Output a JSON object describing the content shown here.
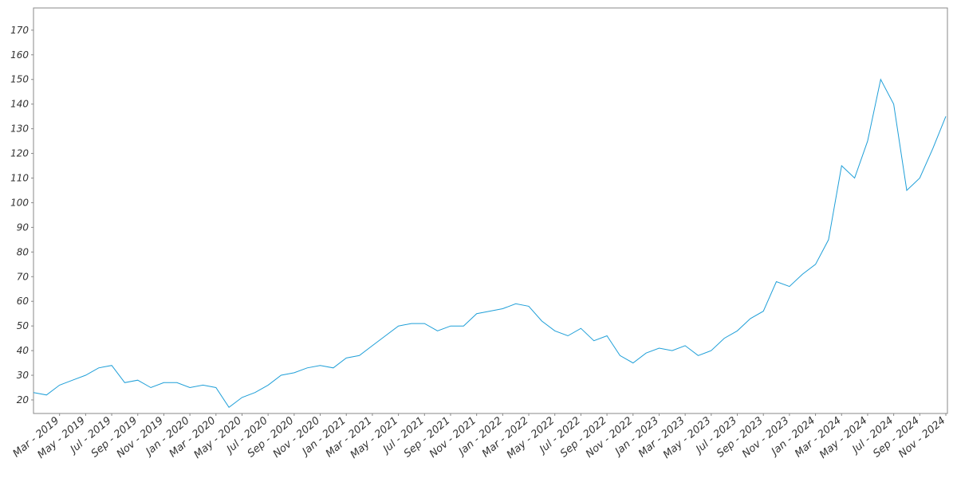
{
  "chart_data": {
    "type": "line",
    "x": [
      "2019-01",
      "2019-02",
      "2019-03",
      "2019-04",
      "2019-05",
      "2019-06",
      "2019-07",
      "2019-08",
      "2019-09",
      "2019-10",
      "2019-11",
      "2019-12",
      "2020-01",
      "2020-02",
      "2020-03",
      "2020-04",
      "2020-05",
      "2020-06",
      "2020-07",
      "2020-08",
      "2020-09",
      "2020-10",
      "2020-11",
      "2020-12",
      "2021-01",
      "2021-02",
      "2021-03",
      "2021-04",
      "2021-05",
      "2021-06",
      "2021-07",
      "2021-08",
      "2021-09",
      "2021-10",
      "2021-11",
      "2021-12",
      "2022-01",
      "2022-02",
      "2022-03",
      "2022-04",
      "2022-05",
      "2022-06",
      "2022-07",
      "2022-08",
      "2022-09",
      "2022-10",
      "2022-11",
      "2022-12",
      "2023-01",
      "2023-02",
      "2023-03",
      "2023-04",
      "2023-05",
      "2023-06",
      "2023-07",
      "2023-08",
      "2023-09",
      "2023-10",
      "2023-11",
      "2023-12",
      "2024-01",
      "2024-02",
      "2024-03",
      "2024-04",
      "2024-05",
      "2024-06",
      "2024-07",
      "2024-08",
      "2024-09",
      "2024-10",
      "2024-11"
    ],
    "values": [
      23,
      22,
      26,
      28,
      30,
      33,
      34,
      27,
      28,
      25,
      27,
      27,
      25,
      26,
      25,
      17,
      21,
      23,
      26,
      30,
      31,
      33,
      34,
      33,
      37,
      38,
      42,
      46,
      50,
      51,
      51,
      48,
      50,
      50,
      55,
      56,
      57,
      59,
      58,
      52,
      48,
      46,
      49,
      44,
      46,
      38,
      35,
      39,
      41,
      40,
      42,
      38,
      40,
      45,
      48,
      53,
      56,
      68,
      66,
      71,
      75,
      85,
      115,
      110,
      125,
      150,
      140,
      105,
      110,
      122,
      135
    ],
    "color": "#1f9fd8",
    "xlim": [
      "2019-01",
      "2024-11"
    ],
    "xticks": [
      {
        "value": "2019-03",
        "label": "Mar - 2019"
      },
      {
        "value": "2019-05",
        "label": "May - 2019"
      },
      {
        "value": "2019-07",
        "label": "Jul - 2019"
      },
      {
        "value": "2019-09",
        "label": "Sep - 2019"
      },
      {
        "value": "2019-11",
        "label": "Nov - 2019"
      },
      {
        "value": "2020-01",
        "label": "Jan - 2020"
      },
      {
        "value": "2020-03",
        "label": "Mar - 2020"
      },
      {
        "value": "2020-05",
        "label": "May - 2020"
      },
      {
        "value": "2020-07",
        "label": "Jul - 2020"
      },
      {
        "value": "2020-09",
        "label": "Sep - 2020"
      },
      {
        "value": "2020-11",
        "label": "Nov - 2020"
      },
      {
        "value": "2021-01",
        "label": "Jan - 2021"
      },
      {
        "value": "2021-03",
        "label": "Mar - 2021"
      },
      {
        "value": "2021-05",
        "label": "May - 2021"
      },
      {
        "value": "2021-07",
        "label": "Jul - 2021"
      },
      {
        "value": "2021-09",
        "label": "Sep - 2021"
      },
      {
        "value": "2021-11",
        "label": "Nov - 2021"
      },
      {
        "value": "2022-01",
        "label": "Jan - 2022"
      },
      {
        "value": "2022-03",
        "label": "Mar - 2022"
      },
      {
        "value": "2022-05",
        "label": "May - 2022"
      },
      {
        "value": "2022-07",
        "label": "Jul - 2022"
      },
      {
        "value": "2022-09",
        "label": "Sep - 2022"
      },
      {
        "value": "2022-11",
        "label": "Nov - 2022"
      },
      {
        "value": "2023-01",
        "label": "Jan - 2023"
      },
      {
        "value": "2023-03",
        "label": "Mar - 2023"
      },
      {
        "value": "2023-05",
        "label": "May - 2023"
      },
      {
        "value": "2023-07",
        "label": "Jul - 2023"
      },
      {
        "value": "2023-09",
        "label": "Sep - 2023"
      },
      {
        "value": "2023-11",
        "label": "Nov - 2023"
      },
      {
        "value": "2024-01",
        "label": "Jan - 2024"
      },
      {
        "value": "2024-03",
        "label": "Mar - 2024"
      },
      {
        "value": "2024-05",
        "label": "May - 2024"
      },
      {
        "value": "2024-07",
        "label": "Jul - 2024"
      },
      {
        "value": "2024-09",
        "label": "Sep - 2024"
      },
      {
        "value": "2024-11",
        "label": "Nov - 2024"
      }
    ],
    "ylim": [
      14.5,
      179
    ],
    "yticks": [
      20,
      30,
      40,
      50,
      60,
      70,
      80,
      90,
      100,
      110,
      120,
      130,
      140,
      150,
      160,
      170
    ],
    "grid": false
  }
}
